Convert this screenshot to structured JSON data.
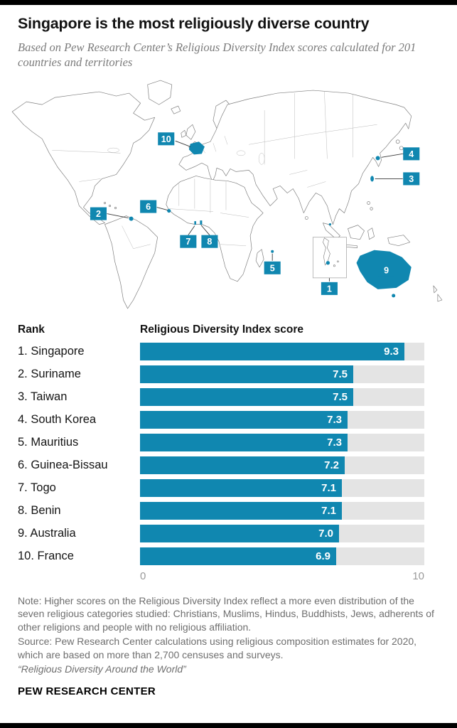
{
  "colors": {
    "accent": "#1087b0",
    "bar_track": "#e4e4e4",
    "bar_value_text": "#ffffff"
  },
  "header": {
    "title": "Singapore is the most religiously diverse country",
    "subtitle": "Based on Pew Research Center’s Religious Diversity Index scores calculated for 201 countries and territories"
  },
  "map": {
    "markers": [
      {
        "number": "1",
        "country": "Singapore"
      },
      {
        "number": "2",
        "country": "Suriname"
      },
      {
        "number": "3",
        "country": "Taiwan"
      },
      {
        "number": "4",
        "country": "South Korea"
      },
      {
        "number": "5",
        "country": "Mauritius"
      },
      {
        "number": "6",
        "country": "Guinea-Bissau"
      },
      {
        "number": "7",
        "country": "Togo"
      },
      {
        "number": "8",
        "country": "Benin"
      },
      {
        "number": "9",
        "country": "Australia"
      },
      {
        "number": "10",
        "country": "France"
      }
    ]
  },
  "chart_data": {
    "type": "bar",
    "rank_header": "Rank",
    "title": "Religious Diversity Index score",
    "categories": [
      "1. Singapore",
      "2. Suriname",
      "3. Taiwan",
      "4. South Korea",
      "5. Mauritius",
      "6. Guinea-Bissau",
      "7. Togo",
      "8. Benin",
      "9. Australia",
      "10. France"
    ],
    "values": [
      9.3,
      7.5,
      7.5,
      7.3,
      7.3,
      7.2,
      7.1,
      7.1,
      7.0,
      6.9
    ],
    "xlim": [
      0,
      10
    ],
    "x_ticks": [
      "0",
      "10"
    ],
    "legend": "none",
    "grid": false
  },
  "notes": {
    "note": "Note: Higher scores on the Religious Diversity Index reflect a more even distribution of the seven religious categories studied: Christians, Muslims, Hindus, Buddhists, Jews, adherents of other religions and people with no religious affiliation.",
    "source": "Source: Pew Research Center calculations using religious composition estimates for 2020, which are based on more than 2,700 censuses and surveys.",
    "report": "“Religious Diversity Around the World”"
  },
  "footer": {
    "brand": "PEW RESEARCH CENTER"
  }
}
